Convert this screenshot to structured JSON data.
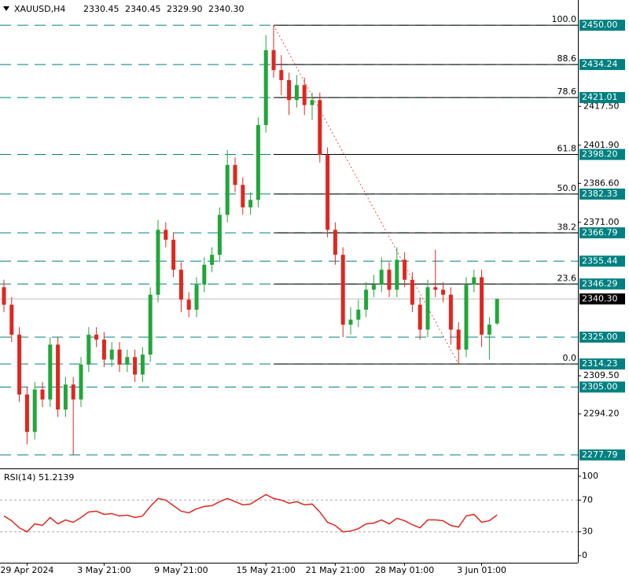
{
  "chart_data": {
    "type": "candlestick",
    "header": {
      "symbol": "XAUUSD,H4",
      "ohlc": [
        "2330.45",
        "2340.45",
        "2329.90",
        "2340.30"
      ]
    },
    "up_color": "#22a63a",
    "down_color": "#e0261f",
    "categories": [
      null,
      null,
      null,
      "29 Apr 2024",
      null,
      null,
      null,
      null,
      null,
      null,
      null,
      null,
      null,
      "3 May 21:00",
      null,
      null,
      null,
      null,
      null,
      null,
      null,
      null,
      null,
      "9 May 21:00",
      null,
      null,
      null,
      null,
      null,
      null,
      null,
      null,
      null,
      null,
      "15 May 21:00",
      null,
      null,
      null,
      null,
      null,
      null,
      null,
      null,
      "21 May 21:00",
      null,
      null,
      null,
      null,
      null,
      null,
      null,
      null,
      "28 May 01:00",
      null,
      null,
      null,
      null,
      null,
      null,
      null,
      null,
      null,
      "3 Jun 01:00",
      null,
      null
    ],
    "open": [
      2345,
      2338,
      2326,
      2302,
      2287,
      2304,
      2300,
      2322,
      2296,
      2306,
      2300,
      2314,
      2326,
      2324,
      2316,
      2320,
      2314,
      2317,
      2310,
      2318,
      2342,
      2368,
      2364,
      2352,
      2340,
      2336,
      2346,
      2354,
      2358,
      2374,
      2394,
      2386,
      2377,
      2380,
      2410,
      2440,
      2432,
      2428,
      2420,
      2426,
      2418,
      2420,
      2398,
      2368,
      2358,
      2330,
      2332,
      2336,
      2344,
      2346,
      2352,
      2344,
      2356,
      2348,
      2338,
      2328,
      2345,
      2344,
      2342,
      2328,
      2320,
      2346,
      2349,
      2326,
      2330.45
    ],
    "high": [
      2348,
      2341,
      2329,
      2305,
      2307,
      2307,
      2325,
      2325,
      2309,
      2309,
      2317,
      2329,
      2329,
      2327,
      2323,
      2323,
      2320,
      2320,
      2321,
      2345,
      2372,
      2371,
      2367,
      2355,
      2343,
      2349,
      2357,
      2361,
      2377,
      2400,
      2397,
      2389,
      2383,
      2413,
      2446,
      2450,
      2438,
      2431,
      2430,
      2429,
      2423,
      2423,
      2401,
      2371,
      2361,
      2337,
      2340,
      2347,
      2350,
      2357,
      2355,
      2361,
      2359,
      2351,
      2341,
      2348,
      2360,
      2347,
      2345,
      2331,
      2349,
      2352,
      2352,
      2333,
      2340.45
    ],
    "low": [
      2335,
      2323,
      2299,
      2282,
      2284,
      2297,
      2297,
      2293,
      2293,
      2277.79,
      2297,
      2311,
      2321,
      2313,
      2313,
      2311,
      2311,
      2307,
      2307,
      2315,
      2339,
      2361,
      2349,
      2335,
      2333,
      2333,
      2343,
      2351,
      2355,
      2371,
      2383,
      2374,
      2374,
      2377,
      2407,
      2429,
      2422,
      2414,
      2417,
      2414,
      2412,
      2395,
      2365,
      2354,
      2325,
      2326,
      2329,
      2333,
      2341,
      2343,
      2341,
      2341,
      2345,
      2335,
      2324,
      2325,
      2341,
      2339,
      2322,
      2314,
      2317,
      2343,
      2321,
      2316,
      2329.9
    ],
    "close": [
      2338,
      2326,
      2302,
      2287,
      2304,
      2300,
      2322,
      2296,
      2306,
      2300,
      2314,
      2326,
      2324,
      2316,
      2320,
      2314,
      2317,
      2310,
      2318,
      2342,
      2368,
      2364,
      2352,
      2340,
      2336,
      2346,
      2354,
      2358,
      2374,
      2394,
      2386,
      2377,
      2380,
      2410,
      2440,
      2432,
      2428,
      2420,
      2426,
      2418,
      2420,
      2398,
      2368,
      2358,
      2330,
      2332,
      2336,
      2344,
      2346,
      2352,
      2344,
      2356,
      2348,
      2338,
      2328,
      2345,
      2344,
      2342,
      2328,
      2320,
      2346,
      2349,
      2326,
      2330,
      2340.3
    ],
    "ylim": [
      2272.7,
      2460.1
    ],
    "yticks": [
      {
        "value": 2417.5,
        "label": "2417.50"
      },
      {
        "value": 2401.9,
        "label": "2401.90"
      },
      {
        "value": 2386.6,
        "label": "2386.60"
      },
      {
        "value": 2371,
        "label": "2371.00"
      },
      {
        "value": 2309.5,
        "label": "2309.50"
      },
      {
        "value": 2294.2,
        "label": "2294.20"
      }
    ],
    "level_color": "#008080",
    "levels": [
      {
        "value": 2450,
        "label": "2450.00"
      },
      {
        "value": 2434.24,
        "label": "2434.24"
      },
      {
        "value": 2421.01,
        "label": "2421.01"
      },
      {
        "value": 2398.2,
        "label": "2398.20"
      },
      {
        "value": 2382.33,
        "label": "2382.33"
      },
      {
        "value": 2366.79,
        "label": "2366.79"
      },
      {
        "value": 2355.44,
        "label": "2355.44"
      },
      {
        "value": 2346.29,
        "label": "2346.29"
      },
      {
        "value": 2325,
        "label": "2325.00"
      },
      {
        "value": 2314.23,
        "label": "2314.23"
      },
      {
        "value": 2305,
        "label": "2305.00"
      },
      {
        "value": 2277.79,
        "label": "2277.79"
      }
    ],
    "current": {
      "value": 2340.3,
      "label": "2340.30"
    },
    "fib": [
      {
        "value": 2450,
        "label": "100.0"
      },
      {
        "value": 2434.24,
        "label": "88.6"
      },
      {
        "value": 2421.01,
        "label": "78.6"
      },
      {
        "value": 2398.2,
        "label": "61.8"
      },
      {
        "value": 2382.33,
        "label": "50.0"
      },
      {
        "value": 2366.79,
        "label": "38.2"
      },
      {
        "value": 2346.29,
        "label": "23.6"
      },
      {
        "value": 2314.23,
        "label": "0.0"
      }
    ],
    "rsi": {
      "title": "RSI(14) 51.2139",
      "color": "#e0261f",
      "values": [
        50,
        44,
        35,
        30,
        40,
        38,
        48,
        40,
        45,
        42,
        48,
        55,
        56,
        52,
        53,
        50,
        51,
        48,
        50,
        62,
        72,
        70,
        63,
        56,
        54,
        59,
        62,
        63,
        68,
        72,
        68,
        64,
        65,
        71,
        77,
        72,
        70,
        66,
        68,
        64,
        65,
        55,
        42,
        38,
        30,
        31,
        34,
        40,
        41,
        45,
        40,
        47,
        44,
        39,
        35,
        45,
        45,
        44,
        38,
        36,
        50,
        52,
        42,
        44,
        51.2139
      ],
      "ylim": [
        -8.9,
        107.9
      ],
      "yticks": [
        100,
        70,
        30,
        0
      ],
      "levels": [
        70,
        30
      ]
    }
  }
}
